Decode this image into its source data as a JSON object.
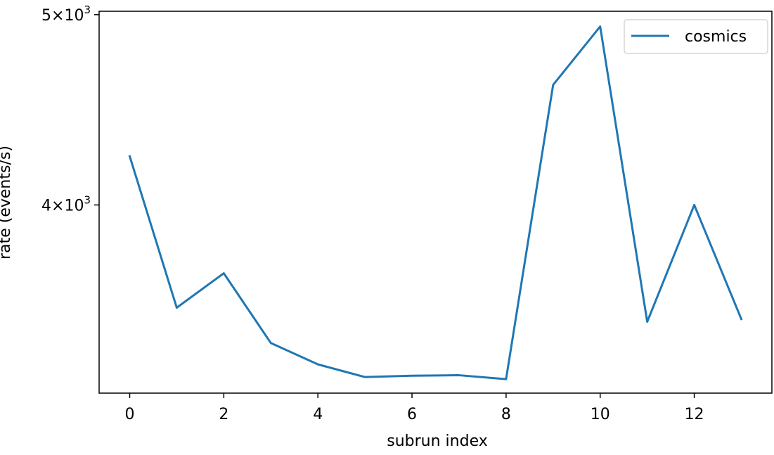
{
  "chart_data": {
    "type": "line",
    "title": "",
    "xlabel": "subrun index",
    "ylabel": "rate (events/s)",
    "yscale": "log",
    "x": [
      0,
      1,
      2,
      3,
      4,
      5,
      6,
      7,
      8,
      9,
      10,
      11,
      12,
      13
    ],
    "series": [
      {
        "name": "cosmics",
        "color": "#1f77b4",
        "values": [
          4235,
          3546,
          3692,
          3402,
          3318,
          3269,
          3274,
          3276,
          3261,
          4605,
          4931,
          3488,
          4000,
          3499
        ]
      }
    ],
    "xlim": [
      -0.65,
      13.65
    ],
    "ylim": [
      3208,
      5020
    ],
    "xticks": [
      0,
      2,
      4,
      6,
      8,
      10,
      12
    ],
    "xtick_labels": [
      "0",
      "2",
      "4",
      "6",
      "8",
      "10",
      "12"
    ],
    "yticks": [
      4000,
      5000
    ],
    "ytick_labels": [
      {
        "mantissa": "4",
        "base": "10",
        "exponent": "3"
      },
      {
        "mantissa": "5",
        "base": "10",
        "exponent": "3"
      }
    ],
    "grid": false,
    "legend_position": "upper right"
  }
}
